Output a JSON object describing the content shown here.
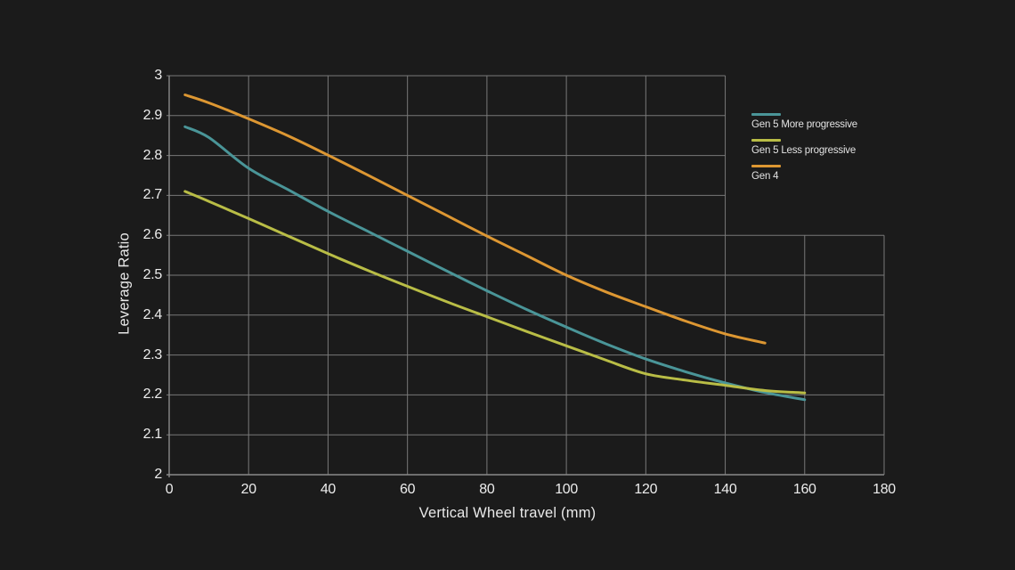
{
  "chart_data": {
    "type": "line",
    "title": "",
    "xlabel": "Vertical Wheel travel (mm)",
    "ylabel": "Leverage Ratio",
    "xlim": [
      0,
      180
    ],
    "ylim": [
      2,
      3
    ],
    "xticks": [
      0,
      20,
      40,
      60,
      80,
      100,
      120,
      140,
      160,
      180
    ],
    "yticks": [
      2,
      2.1,
      2.2,
      2.3,
      2.4,
      2.5,
      2.6,
      2.7,
      2.8,
      2.9,
      3
    ],
    "grid": true,
    "legend_position": "top-right",
    "grid_cutout": {
      "x_from_mm": 140,
      "y_above": 2.6
    },
    "series": [
      {
        "name": "Gen 5 More progressive",
        "color": "#4a9598",
        "x": [
          4,
          10,
          20,
          30,
          40,
          50,
          60,
          70,
          80,
          90,
          100,
          110,
          120,
          130,
          140,
          150,
          160
        ],
        "y": [
          2.872,
          2.845,
          2.768,
          2.714,
          2.66,
          2.61,
          2.56,
          2.51,
          2.461,
          2.414,
          2.37,
          2.328,
          2.29,
          2.258,
          2.23,
          2.206,
          2.188
        ]
      },
      {
        "name": "Gen 5 Less progressive",
        "color": "#b9bd46",
        "x": [
          4,
          10,
          20,
          30,
          40,
          50,
          60,
          70,
          80,
          90,
          100,
          110,
          120,
          130,
          140,
          150,
          160
        ],
        "y": [
          2.71,
          2.685,
          2.642,
          2.598,
          2.554,
          2.512,
          2.472,
          2.433,
          2.396,
          2.359,
          2.323,
          2.287,
          2.253,
          2.237,
          2.224,
          2.211,
          2.205
        ]
      },
      {
        "name": "Gen 4",
        "color": "#dd9732",
        "x": [
          4,
          10,
          20,
          30,
          40,
          50,
          60,
          70,
          80,
          90,
          100,
          110,
          120,
          130,
          140,
          150
        ],
        "y": [
          2.952,
          2.932,
          2.892,
          2.849,
          2.801,
          2.751,
          2.7,
          2.649,
          2.598,
          2.549,
          2.5,
          2.458,
          2.421,
          2.385,
          2.353,
          2.33
        ]
      }
    ],
    "colors": {
      "background": "#1b1b1b",
      "grid": "#787878",
      "axis": "#8a8a8a",
      "tick_text": "#ededed",
      "title_text": "#e9e9e9"
    }
  }
}
